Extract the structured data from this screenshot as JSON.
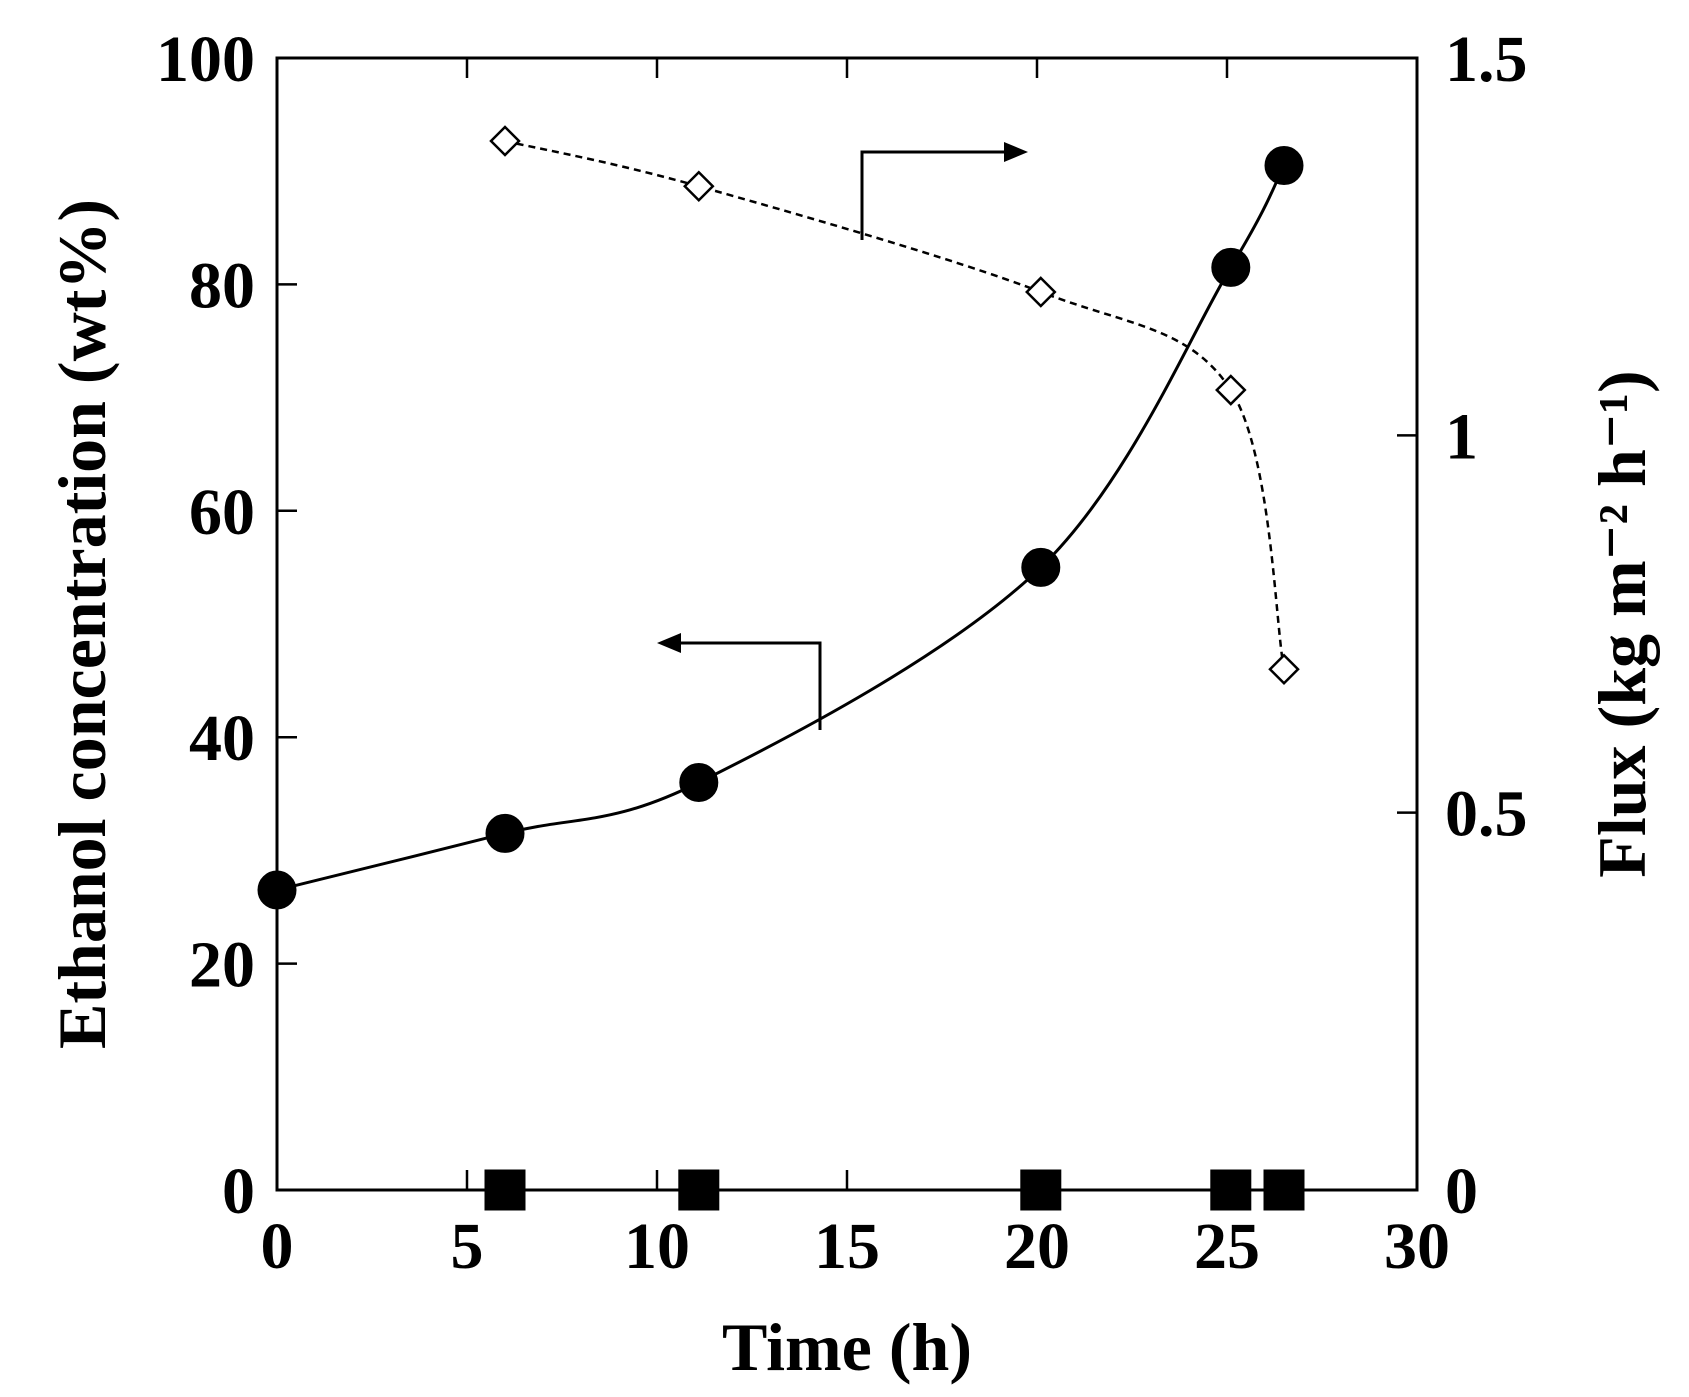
{
  "chart_data": {
    "type": "line",
    "xlabel": "Time (h)",
    "ylabel": "Ethanol concentration (wt%)",
    "y2label": "Flux (kg m⁻² h⁻¹)",
    "xlim": [
      0,
      30
    ],
    "ylim": [
      0,
      100
    ],
    "y2lim": [
      0,
      1.5
    ],
    "x_ticks": [
      "0",
      "5",
      "10",
      "15",
      "20",
      "25",
      "30"
    ],
    "y_ticks": [
      "0",
      "20",
      "40",
      "60",
      "80",
      "100"
    ],
    "y2_ticks": [
      "0",
      "0.5",
      "1",
      "1.5"
    ],
    "grid": false,
    "series": [
      {
        "axis": "left",
        "marker": "filled-circle",
        "line": "solid",
        "x": [
          0,
          6,
          11.1,
          20.1,
          25.1,
          26.5
        ],
        "y": [
          26.5,
          31.5,
          36.0,
          55.0,
          81.5,
          90.5
        ]
      },
      {
        "axis": "right",
        "marker": "open-diamond",
        "line": "dashed",
        "x": [
          6,
          11.1,
          20.1,
          25.1,
          26.5
        ],
        "y": [
          1.39,
          1.33,
          1.19,
          1.06,
          0.69
        ]
      },
      {
        "axis": "left",
        "marker": "filled-square",
        "line": "none",
        "x": [
          6,
          11.1,
          20.1,
          25.1,
          26.5
        ],
        "y": [
          0,
          0,
          0,
          0,
          0
        ]
      }
    ]
  }
}
